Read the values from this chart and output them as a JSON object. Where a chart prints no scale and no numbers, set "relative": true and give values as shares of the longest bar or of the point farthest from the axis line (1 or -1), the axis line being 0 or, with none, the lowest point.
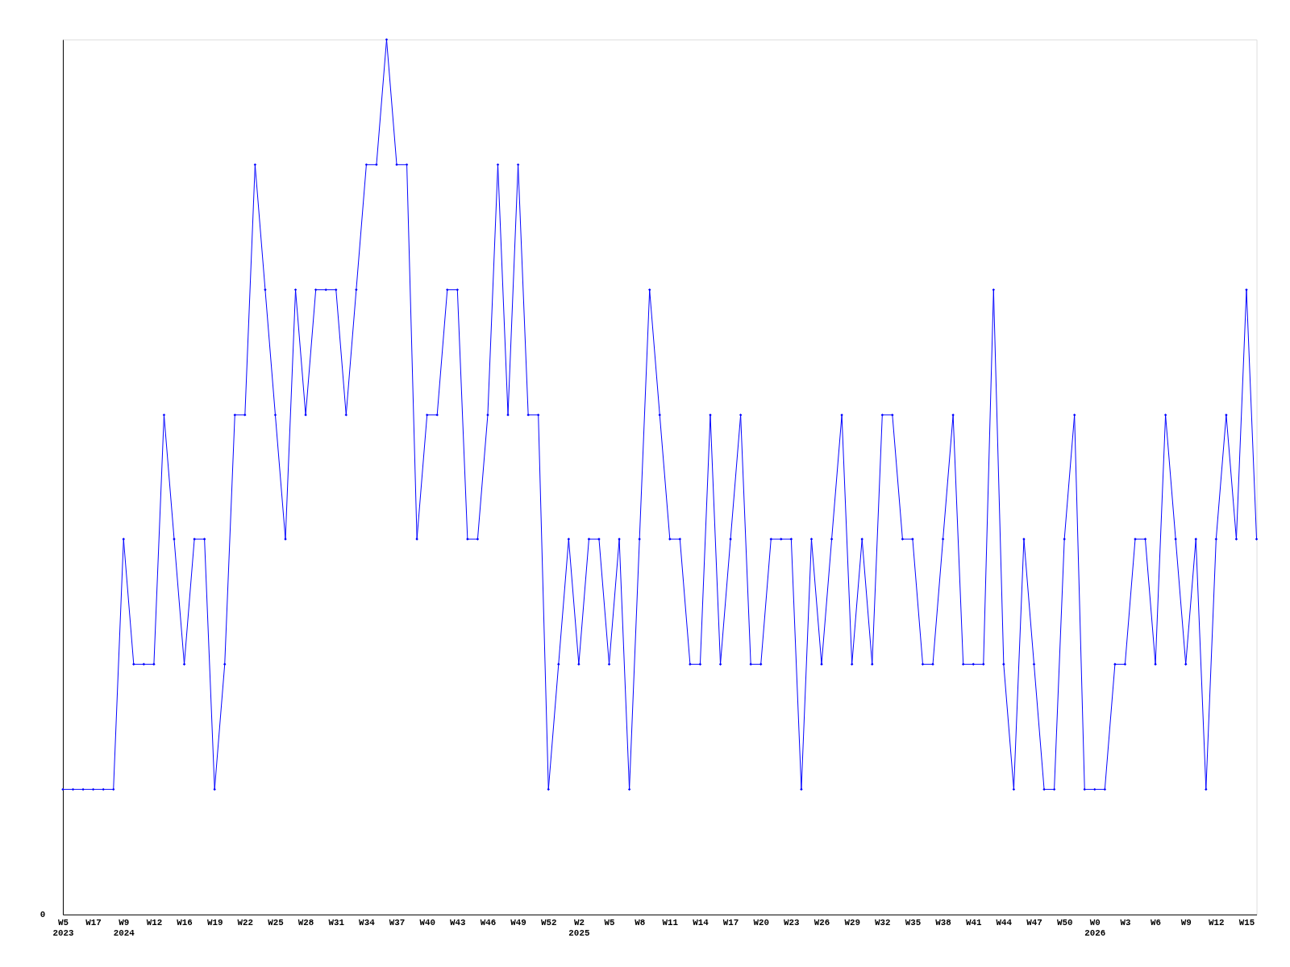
{
  "chart_data": {
    "type": "line",
    "relative": true,
    "color": "#0000ff",
    "marker": "diamond",
    "line_style": "solid",
    "grid": false,
    "annotations": [
      "0"
    ],
    "categories": [
      "W5\n2023",
      null,
      null,
      "W17",
      null,
      null,
      "W9\n2024",
      null,
      null,
      "W12",
      null,
      null,
      "W16",
      null,
      null,
      "W19",
      null,
      null,
      "W22",
      null,
      null,
      "W25",
      null,
      null,
      "W28",
      null,
      null,
      "W31",
      null,
      null,
      "W34",
      null,
      null,
      "W37",
      null,
      null,
      "W40",
      null,
      null,
      "W43",
      null,
      null,
      "W46",
      null,
      null,
      "W49",
      null,
      null,
      "W52",
      null,
      null,
      "W2\n2025",
      null,
      null,
      "W5",
      null,
      null,
      "W8",
      null,
      null,
      "W11",
      null,
      null,
      "W14",
      null,
      null,
      "W17",
      null,
      null,
      "W20",
      null,
      null,
      "W23",
      null,
      null,
      "W26",
      null,
      null,
      "W29",
      null,
      null,
      "W32",
      null,
      null,
      "W35",
      null,
      null,
      "W38",
      null,
      null,
      "W41",
      null,
      null,
      "W44",
      null,
      null,
      "W47",
      null,
      null,
      "W50",
      null,
      null,
      "W0\n2026",
      null,
      null,
      "W3",
      null,
      null,
      "W6",
      null,
      null,
      "W9",
      null,
      null,
      "W12",
      null,
      null,
      "W15",
      null
    ],
    "values": [
      0.143,
      0.143,
      0.143,
      0.143,
      0.143,
      0.143,
      0.429,
      0.286,
      0.286,
      0.286,
      0.571,
      0.429,
      0.286,
      0.429,
      0.429,
      0.143,
      0.286,
      0.571,
      0.571,
      0.857,
      0.714,
      0.571,
      0.429,
      0.714,
      0.571,
      0.714,
      0.714,
      0.714,
      0.571,
      0.714,
      0.857,
      0.857,
      1,
      0.857,
      0.857,
      0.429,
      0.571,
      0.571,
      0.714,
      0.714,
      0.429,
      0.429,
      0.571,
      0.857,
      0.571,
      0.857,
      0.571,
      0.571,
      0.143,
      0.286,
      0.429,
      0.286,
      0.429,
      0.429,
      0.286,
      0.429,
      0.143,
      0.429,
      0.714,
      0.571,
      0.429,
      0.429,
      0.286,
      0.286,
      0.571,
      0.286,
      0.429,
      0.571,
      0.286,
      0.286,
      0.429,
      0.429,
      0.429,
      0.143,
      0.429,
      0.286,
      0.429,
      0.571,
      0.286,
      0.429,
      0.286,
      0.571,
      0.571,
      0.429,
      0.429,
      0.286,
      0.286,
      0.429,
      0.571,
      0.286,
      0.286,
      0.286,
      0.714,
      0.286,
      0.143,
      0.429,
      0.286,
      0.143,
      0.143,
      0.429,
      0.571,
      0.143,
      0.143,
      0.143,
      0.286,
      0.286,
      0.429,
      0.429,
      0.286,
      0.571,
      0.429,
      0.286,
      0.429,
      0.143,
      0.429,
      0.571,
      0.429,
      0.714,
      0.429
    ]
  }
}
